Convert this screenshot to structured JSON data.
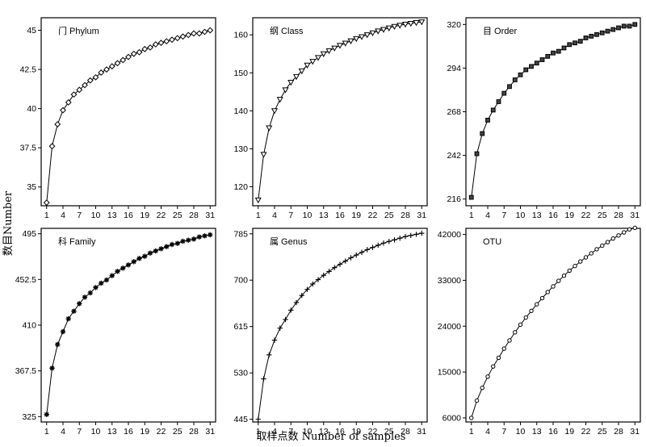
{
  "figure": {
    "xlabel": "取样点数 Number of samples",
    "ylabel": "数目Number"
  },
  "chart_data": [
    {
      "type": "line",
      "title": "门  Phylum",
      "marker": "diamond",
      "xticks": [
        1,
        4,
        7,
        10,
        13,
        16,
        19,
        22,
        25,
        28,
        31
      ],
      "yticks": [
        "35",
        "37.5",
        "40",
        "42.5",
        "45"
      ],
      "xlim": [
        0,
        32
      ],
      "ylim": [
        33.8,
        45.8
      ],
      "x": [
        1,
        2,
        3,
        4,
        5,
        6,
        7,
        8,
        9,
        10,
        11,
        12,
        13,
        14,
        15,
        16,
        17,
        18,
        19,
        20,
        21,
        22,
        23,
        24,
        25,
        26,
        27,
        28,
        29,
        30,
        31
      ],
      "values": [
        34.0,
        37.6,
        39.0,
        39.9,
        40.4,
        40.9,
        41.2,
        41.5,
        41.8,
        42.0,
        42.3,
        42.5,
        42.7,
        42.9,
        43.1,
        43.3,
        43.5,
        43.6,
        43.8,
        43.9,
        44.1,
        44.2,
        44.3,
        44.4,
        44.5,
        44.6,
        44.7,
        44.8,
        44.8,
        44.9,
        45.0
      ]
    },
    {
      "type": "line",
      "title": "纲  Class",
      "marker": "triangle-down",
      "xticks": [
        1,
        4,
        7,
        10,
        13,
        16,
        19,
        22,
        25,
        28,
        31
      ],
      "yticks": [
        "120",
        "130",
        "140",
        "150",
        "160"
      ],
      "xlim": [
        0,
        32
      ],
      "ylim": [
        115,
        164.5
      ],
      "x": [
        1,
        2,
        3,
        4,
        5,
        6,
        7,
        8,
        9,
        10,
        11,
        12,
        13,
        14,
        15,
        16,
        17,
        18,
        19,
        20,
        21,
        22,
        23,
        24,
        25,
        26,
        27,
        28,
        29,
        30,
        31
      ],
      "values": [
        116.5,
        128.5,
        135.5,
        140.0,
        143.0,
        145.5,
        147.5,
        149.0,
        150.5,
        152.0,
        153.0,
        154.0,
        155.0,
        155.8,
        156.5,
        157.2,
        157.8,
        158.4,
        159.0,
        159.5,
        160.0,
        160.5,
        161.0,
        161.4,
        161.8,
        162.2,
        162.5,
        162.8,
        163.0,
        163.2,
        163.4
      ]
    },
    {
      "type": "line",
      "title": "目  Order",
      "marker": "square",
      "xticks": [
        1,
        4,
        7,
        10,
        13,
        16,
        19,
        22,
        25,
        28,
        31
      ],
      "yticks": [
        "216",
        "242",
        "268",
        "294",
        "320"
      ],
      "xlim": [
        0,
        32
      ],
      "ylim": [
        212,
        324
      ],
      "x": [
        1,
        2,
        3,
        4,
        5,
        6,
        7,
        8,
        9,
        10,
        11,
        12,
        13,
        14,
        15,
        16,
        17,
        18,
        19,
        20,
        21,
        22,
        23,
        24,
        25,
        26,
        27,
        28,
        29,
        30,
        31
      ],
      "values": [
        217,
        243,
        255,
        263,
        269,
        274,
        279,
        283,
        287,
        290,
        293,
        295,
        297,
        299,
        301,
        303,
        304,
        306,
        308,
        309,
        310,
        312,
        313,
        314,
        315,
        316,
        317,
        318,
        319,
        319,
        320
      ]
    },
    {
      "type": "line",
      "title": "科  Family",
      "marker": "asterisk",
      "xticks": [
        1,
        4,
        7,
        10,
        13,
        16,
        19,
        22,
        25,
        28,
        31
      ],
      "yticks": [
        "325",
        "367.5",
        "410",
        "452.5",
        "495"
      ],
      "xlim": [
        0,
        32
      ],
      "ylim": [
        320,
        500
      ],
      "x": [
        1,
        2,
        3,
        4,
        5,
        6,
        7,
        8,
        9,
        10,
        11,
        12,
        13,
        14,
        15,
        16,
        17,
        18,
        19,
        20,
        21,
        22,
        23,
        24,
        25,
        26,
        27,
        28,
        29,
        30,
        31
      ],
      "values": [
        327,
        370,
        392,
        404,
        416,
        423,
        430,
        436,
        440,
        445,
        449,
        452,
        456,
        460,
        463,
        466,
        469,
        472,
        474,
        477,
        479,
        481,
        483,
        485,
        486,
        488,
        489,
        490,
        492,
        493,
        494
      ]
    },
    {
      "type": "line",
      "title": "属  Genus",
      "marker": "plus",
      "xticks": [
        1,
        4,
        7,
        10,
        13,
        16,
        19,
        22,
        25,
        28,
        31
      ],
      "yticks": [
        "445",
        "530",
        "615",
        "700",
        "785"
      ],
      "xlim": [
        0,
        32
      ],
      "ylim": [
        440,
        795
      ],
      "x": [
        1,
        2,
        3,
        4,
        5,
        6,
        7,
        8,
        9,
        10,
        11,
        12,
        13,
        14,
        15,
        16,
        17,
        18,
        19,
        20,
        21,
        22,
        23,
        24,
        25,
        26,
        27,
        28,
        29,
        30,
        31
      ],
      "values": [
        445,
        519,
        563,
        590,
        612,
        628,
        645,
        659,
        672,
        683,
        693,
        701,
        709,
        716,
        723,
        729,
        735,
        741,
        746,
        751,
        756,
        760,
        764,
        768,
        771,
        774,
        777,
        780,
        782,
        784,
        786
      ]
    },
    {
      "type": "line",
      "title": "OTU",
      "marker": "circle",
      "xticks": [
        1,
        4,
        7,
        10,
        13,
        16,
        19,
        22,
        25,
        28,
        31
      ],
      "yticks": [
        "6000",
        "15000",
        "24000",
        "33000",
        "42000"
      ],
      "xlim": [
        0,
        32
      ],
      "ylim": [
        5200,
        43200
      ],
      "x": [
        1,
        2,
        3,
        4,
        5,
        6,
        7,
        8,
        9,
        10,
        11,
        12,
        13,
        14,
        15,
        16,
        17,
        18,
        19,
        20,
        21,
        22,
        23,
        24,
        25,
        26,
        27,
        28,
        29,
        30,
        31
      ],
      "values": [
        6000,
        9400,
        11900,
        14100,
        16100,
        17800,
        19600,
        21200,
        22800,
        24300,
        25700,
        27000,
        28300,
        29500,
        30700,
        31800,
        32900,
        33900,
        34900,
        35800,
        36700,
        37500,
        38300,
        39100,
        39800,
        40500,
        41200,
        41800,
        42400,
        43000,
        43300
      ]
    }
  ]
}
